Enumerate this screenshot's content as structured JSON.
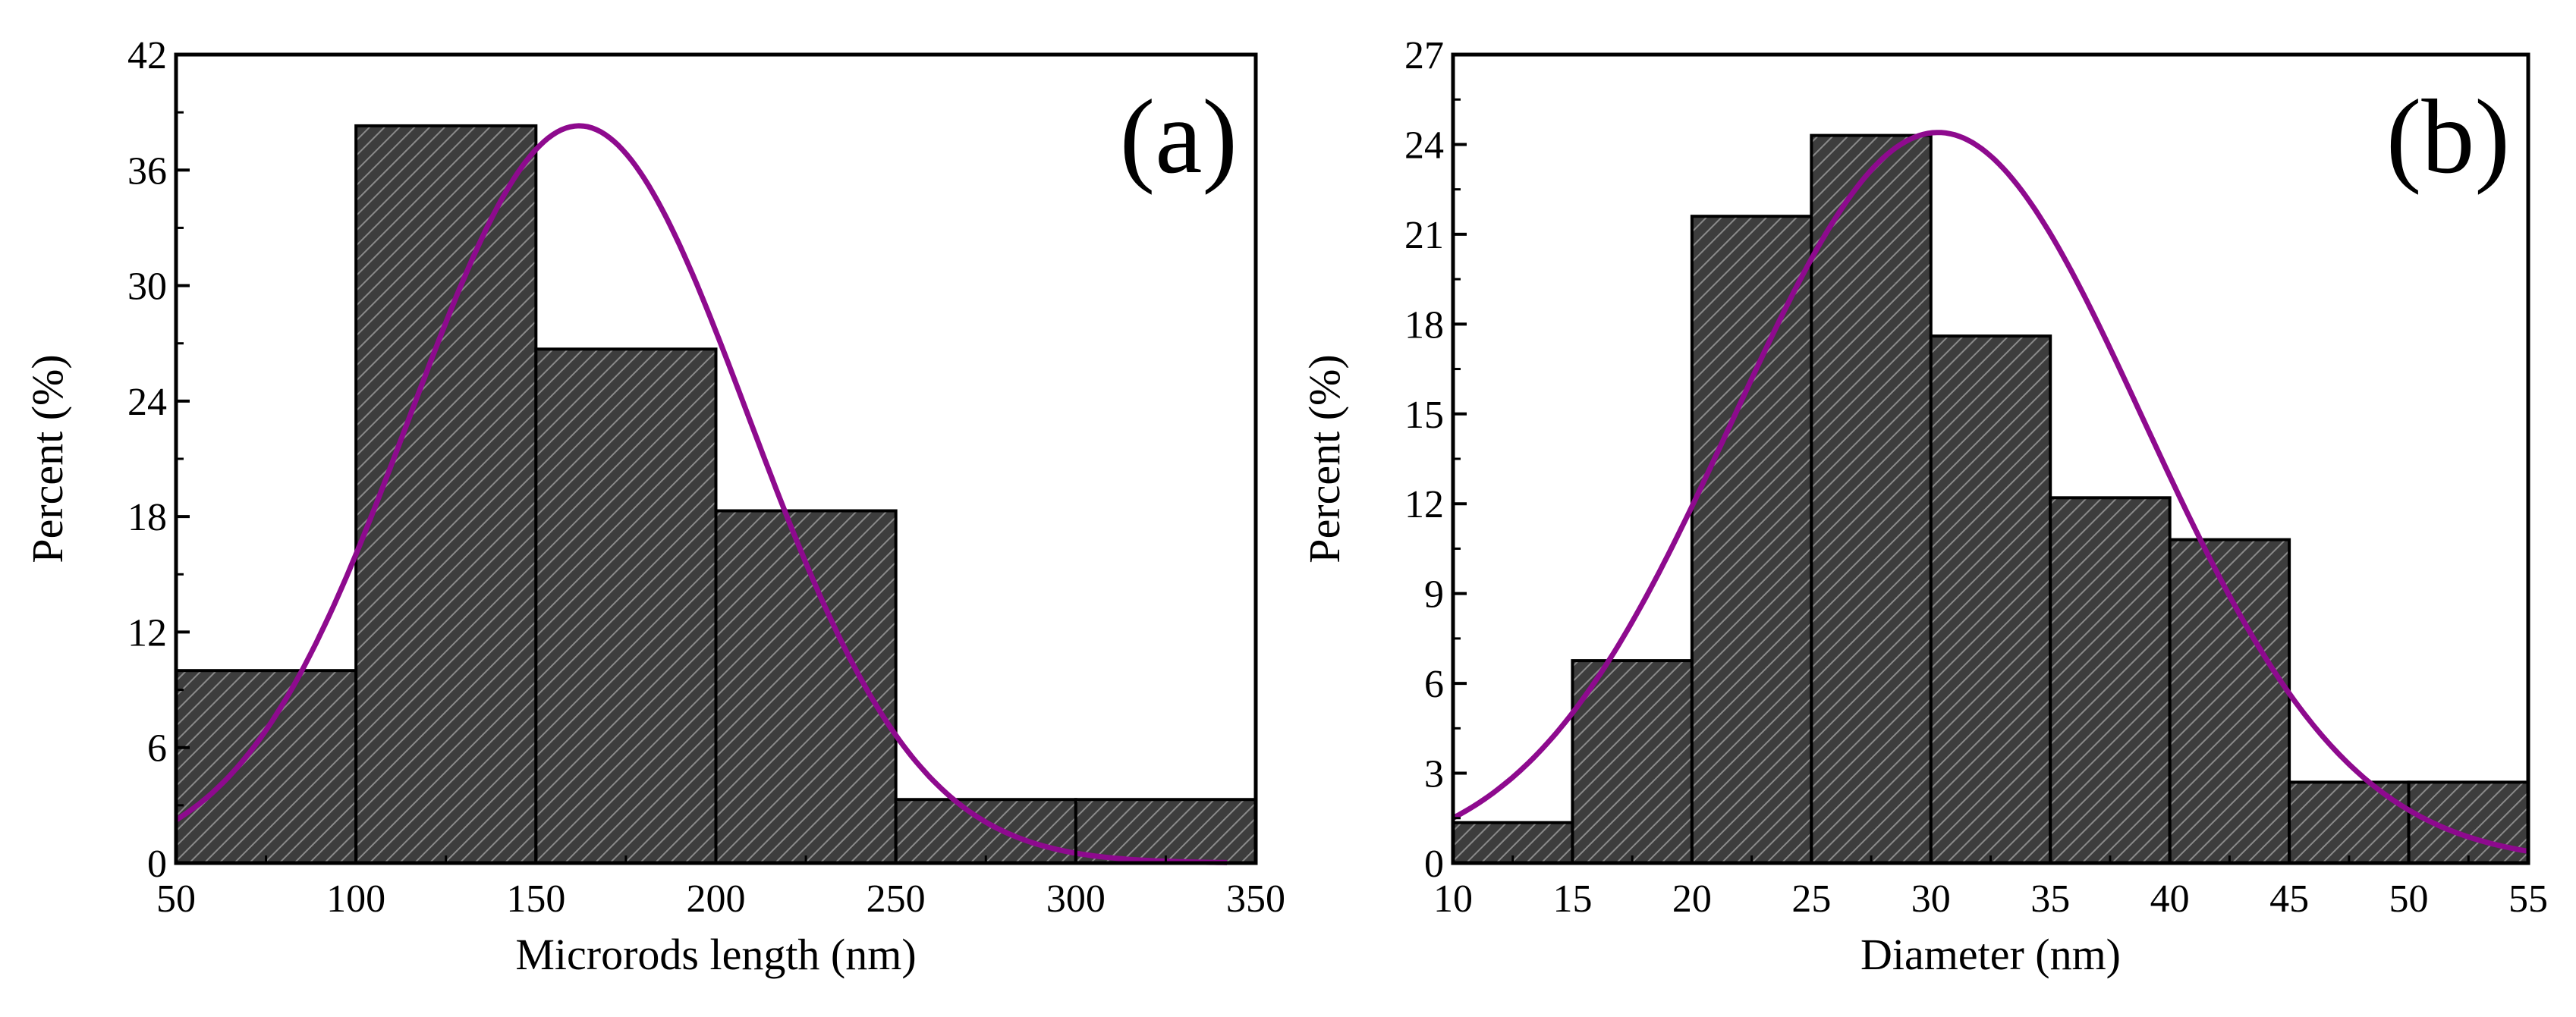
{
  "colors": {
    "bar_fill": "#3d3d3d",
    "bar_hatch": "#8a8a8a",
    "fit_curve": "#8e0a8e",
    "axis": "#000000"
  },
  "chart_data": [
    {
      "type": "bar",
      "panel_label": "(a)",
      "xlabel": "Microrods length (nm)",
      "ylabel": "Percent (%)",
      "xlim": [
        50,
        350
      ],
      "ylim": [
        0,
        42
      ],
      "xticks": [
        50,
        100,
        150,
        200,
        250,
        300,
        350
      ],
      "yticks": [
        0,
        6,
        12,
        18,
        24,
        30,
        36,
        42
      ],
      "bins": [
        [
          50,
          100
        ],
        [
          100,
          150
        ],
        [
          150,
          200
        ],
        [
          200,
          250
        ],
        [
          250,
          300
        ],
        [
          300,
          350
        ]
      ],
      "values": [
        10.0,
        38.3,
        26.7,
        18.3,
        3.3,
        3.3
      ],
      "fit": {
        "type": "gaussian",
        "mean": 162,
        "sigma": 47,
        "peak": 38.3,
        "x_range": [
          50,
          342
        ]
      }
    },
    {
      "type": "bar",
      "panel_label": "(b)",
      "xlabel": "Diameter (nm)",
      "ylabel": "Percent (%)",
      "xlim": [
        10,
        55
      ],
      "ylim": [
        0,
        27
      ],
      "xticks": [
        10,
        15,
        20,
        25,
        30,
        35,
        40,
        45,
        50,
        55
      ],
      "yticks": [
        0,
        3,
        6,
        9,
        12,
        15,
        18,
        21,
        24,
        27
      ],
      "bins": [
        [
          10,
          15
        ],
        [
          15,
          20
        ],
        [
          20,
          25
        ],
        [
          25,
          30
        ],
        [
          30,
          35
        ],
        [
          35,
          40
        ],
        [
          40,
          45
        ],
        [
          45,
          50
        ],
        [
          50,
          55
        ]
      ],
      "values": [
        1.35,
        6.76,
        21.6,
        24.3,
        17.6,
        12.2,
        10.8,
        2.7,
        2.7
      ],
      "fit": {
        "type": "gaussian",
        "mean": 30.3,
        "sigma": 8.6,
        "peak": 24.4,
        "x_range": [
          10,
          55
        ]
      }
    }
  ]
}
